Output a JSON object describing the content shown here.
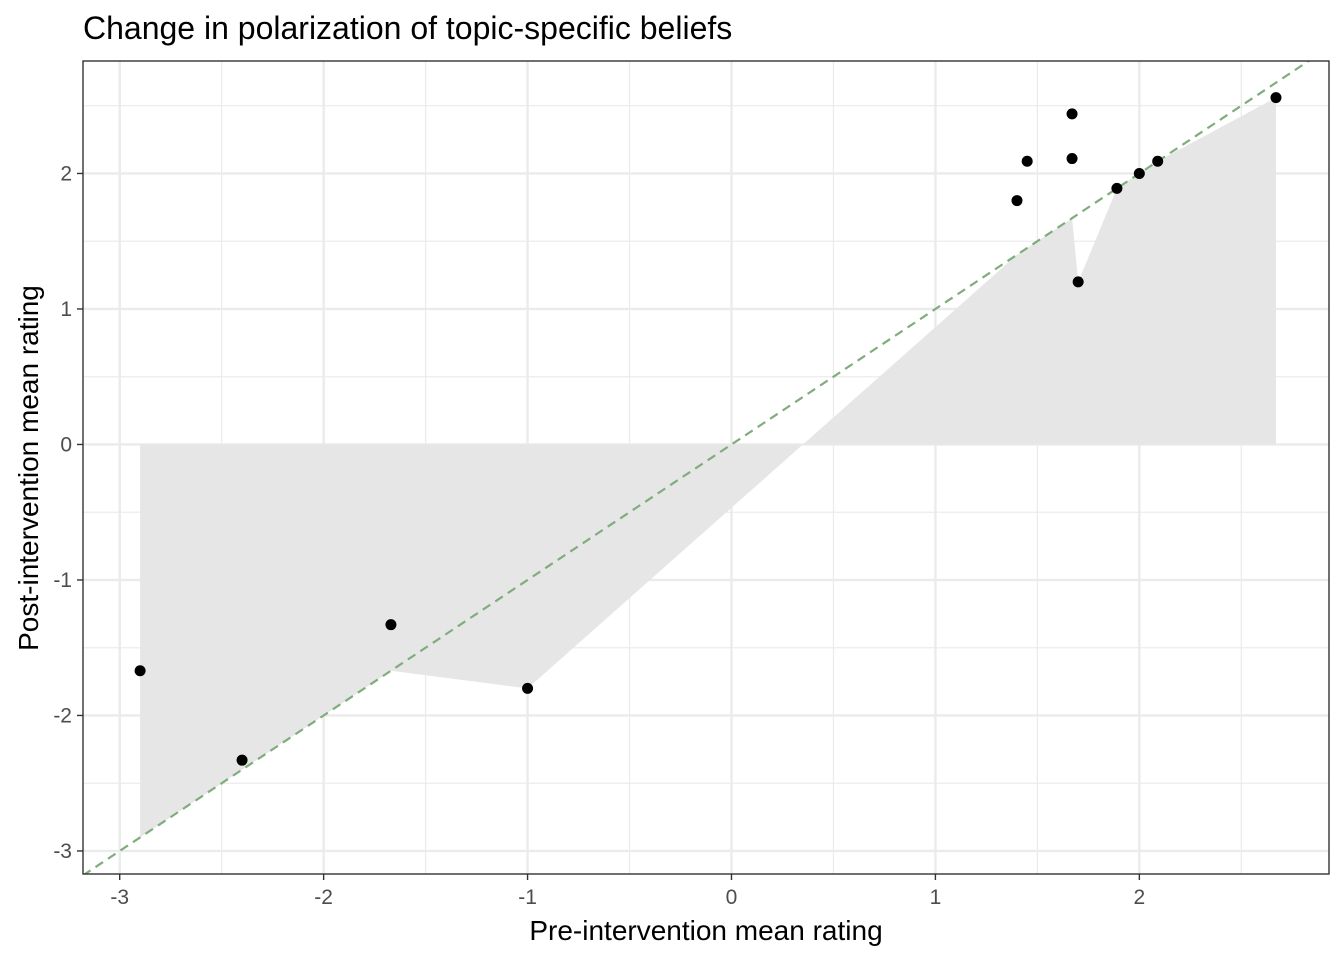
{
  "chart_data": {
    "type": "scatter",
    "title": "Change in polarization of topic-specific beliefs",
    "xlabel": "Pre-intervention mean rating",
    "ylabel": "Post-intervention mean rating",
    "xlim": [
      -3.18,
      2.93
    ],
    "ylim": [
      -3.17,
      2.83
    ],
    "x_ticks": [
      -3,
      -2,
      -1,
      0,
      1,
      2
    ],
    "y_ticks": [
      -3,
      -2,
      -1,
      0,
      1,
      2
    ],
    "x_tick_labels": [
      "-3",
      "-2",
      "-1",
      "0",
      "1",
      "2"
    ],
    "y_tick_labels": [
      "-3",
      "-2",
      "-1",
      "0",
      "1",
      "2"
    ],
    "grid": true,
    "theme": "black-and-white panel with light gray gridlines",
    "points": [
      {
        "x": -2.9,
        "y": -1.67
      },
      {
        "x": -2.4,
        "y": -2.33
      },
      {
        "x": -1.67,
        "y": -1.33
      },
      {
        "x": -1.0,
        "y": -1.8
      },
      {
        "x": 1.4,
        "y": 1.8
      },
      {
        "x": 1.45,
        "y": 2.09
      },
      {
        "x": 1.67,
        "y": 2.44
      },
      {
        "x": 1.67,
        "y": 2.11
      },
      {
        "x": 1.7,
        "y": 1.2
      },
      {
        "x": 1.89,
        "y": 1.89
      },
      {
        "x": 2.0,
        "y": 2.0
      },
      {
        "x": 2.09,
        "y": 2.09
      },
      {
        "x": 2.67,
        "y": 2.56
      }
    ],
    "shaded_region": {
      "description": "area between reference line and data path (up to y=0 baseline)",
      "color": "#e6e6e6",
      "polygon": [
        [
          -2.9,
          0
        ],
        [
          -2.9,
          -2.9
        ],
        [
          -2.4,
          -2.4
        ],
        [
          -1.67,
          -1.67
        ],
        [
          -1.0,
          -1.8
        ],
        [
          0.35,
          0
        ],
        [
          1.4,
          1.4
        ],
        [
          1.67,
          1.67
        ],
        [
          1.7,
          1.2
        ],
        [
          1.89,
          1.89
        ],
        [
          2.0,
          2.0
        ],
        [
          2.09,
          2.09
        ],
        [
          2.67,
          2.56
        ],
        [
          2.67,
          0
        ]
      ]
    },
    "reference_line": {
      "slope": 1,
      "intercept": 0,
      "style": "dashed",
      "color": "#7fad7c"
    },
    "point_color": "#000000",
    "panel_border_color": "#333333",
    "grid_color": "#ebebeb"
  }
}
